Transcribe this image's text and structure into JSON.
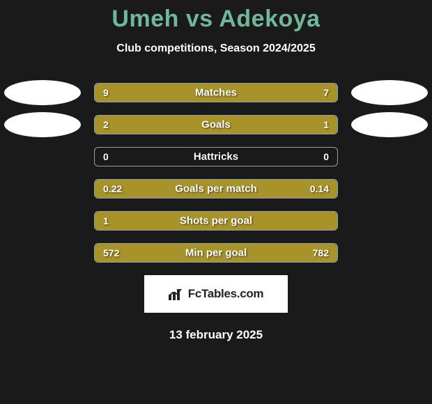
{
  "title": {
    "left": "Umeh",
    "vs": "vs",
    "right": "Adekoya"
  },
  "title_color": "#6fb89b",
  "title_fontsize": 34,
  "subtitle": "Club competitions, Season 2024/2025",
  "subtitle_fontsize": 16,
  "background_color": "#1a1a1a",
  "bar_border_color": "#8f9fb3",
  "left_color": "#a8932b",
  "right_color": "#a8932b",
  "badge_colors": {
    "left": "#ffffff",
    "right": "#ffffff"
  },
  "rows": [
    {
      "label": "Matches",
      "left_val": "9",
      "right_val": "7",
      "left_pct": 56,
      "right_pct": 44,
      "show_badge": true
    },
    {
      "label": "Goals",
      "left_val": "2",
      "right_val": "1",
      "left_pct": 67,
      "right_pct": 33,
      "show_badge": true
    },
    {
      "label": "Hattricks",
      "left_val": "0",
      "right_val": "0",
      "left_pct": 0,
      "right_pct": 0,
      "show_badge": false
    },
    {
      "label": "Goals per match",
      "left_val": "0.22",
      "right_val": "0.14",
      "left_pct": 61,
      "right_pct": 39,
      "show_badge": false
    },
    {
      "label": "Shots per goal",
      "left_val": "1",
      "right_val": "",
      "left_pct": 100,
      "right_pct": 0,
      "show_badge": false
    },
    {
      "label": "Min per goal",
      "left_val": "572",
      "right_val": "782",
      "left_pct": 42,
      "right_pct": 58,
      "show_badge": false
    }
  ],
  "brand": "FcTables.com",
  "date": "13 february 2025"
}
